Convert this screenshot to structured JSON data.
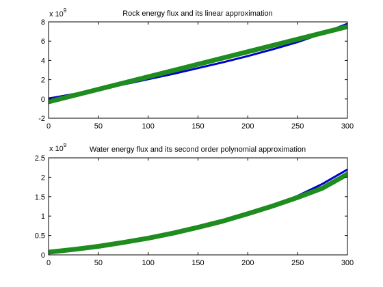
{
  "chart_data": [
    {
      "type": "line",
      "title": "Rock energy flux and its linear approximation",
      "xlabel": "",
      "ylabel": "",
      "xlim": [
        0,
        300
      ],
      "ylim": [
        -2,
        8
      ],
      "xticks": [
        0,
        50,
        100,
        150,
        200,
        250,
        300
      ],
      "yticks": [
        -2,
        0,
        2,
        4,
        6,
        8
      ],
      "y_exponent_base": "x 10",
      "y_exponent_power": "9",
      "grid": false,
      "series": [
        {
          "color": "#0000cc",
          "x": [
            0,
            25,
            50,
            75,
            100,
            125,
            150,
            175,
            200,
            225,
            250,
            275,
            300
          ],
          "y": [
            0.05,
            0.5,
            1.0,
            1.5,
            2.05,
            2.6,
            3.2,
            3.8,
            4.45,
            5.15,
            5.9,
            6.8,
            7.8
          ]
        },
        {
          "color": "#1e8c1e",
          "x": [
            0,
            300
          ],
          "y": [
            -0.3,
            7.5
          ]
        }
      ]
    },
    {
      "type": "line",
      "title": "Water energy flux and its second order polynomial approximation",
      "xlabel": "",
      "ylabel": "",
      "xlim": [
        0,
        300
      ],
      "ylim": [
        0,
        2.5
      ],
      "xticks": [
        0,
        50,
        100,
        150,
        200,
        250,
        300
      ],
      "yticks": [
        0,
        0.5,
        1,
        1.5,
        2,
        2.5
      ],
      "y_exponent_base": "x 10",
      "y_exponent_power": "9",
      "grid": false,
      "series": [
        {
          "color": "#0000cc",
          "x": [
            0,
            25,
            50,
            75,
            100,
            125,
            150,
            175,
            200,
            225,
            250,
            275,
            300
          ],
          "y": [
            0.05,
            0.12,
            0.22,
            0.33,
            0.45,
            0.58,
            0.72,
            0.88,
            1.06,
            1.27,
            1.52,
            1.83,
            2.2
          ]
        },
        {
          "color": "#1e8c1e",
          "x": [
            0,
            25,
            50,
            75,
            100,
            125,
            150,
            175,
            200,
            225,
            250,
            275,
            300
          ],
          "y": [
            0.07,
            0.14,
            0.22,
            0.32,
            0.43,
            0.56,
            0.71,
            0.87,
            1.06,
            1.26,
            1.48,
            1.72,
            2.08
          ]
        }
      ]
    }
  ]
}
